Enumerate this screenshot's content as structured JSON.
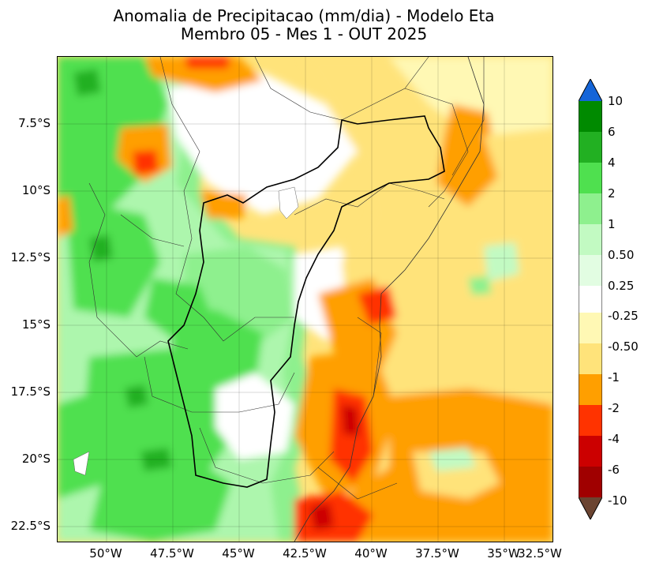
{
  "title_line1": "Anomalia de Precipitacao (mm/dia) - Modelo Eta",
  "title_line2": "Membro 05 - Mes 1 - OUT 2025",
  "y_axis": [
    "7.5°S",
    "10°S",
    "12.5°S",
    "15°S",
    "17.5°S",
    "20°S",
    "22.5°S"
  ],
  "x_axis": [
    "50°W",
    "47.5°W",
    "45°W",
    "42.5°W",
    "40°W",
    "37.5°W",
    "35°W",
    "32.5°W"
  ],
  "colorbar": {
    "labels": [
      "10",
      "6",
      "4",
      "2",
      "1",
      "0.50",
      "0.25",
      "-0.25",
      "-0.50",
      "-1",
      "-2",
      "-4",
      "-6",
      "-10"
    ],
    "colors": {
      "extend_max": "#1565d8",
      "gt6": "#008a00",
      "4_6": "#22b022",
      "2_4": "#4fe04f",
      "1_2": "#8ef08e",
      "0.5_1": "#c2fac2",
      "0.25_0.5": "#e2fde2",
      "neutral": "#ffffff",
      "m0.5_m0.25": "#fff8b4",
      "m1_m0.5": "#ffe37a",
      "m2_m1": "#ff9f00",
      "m4_m2": "#ff3300",
      "m6_m4": "#cc0000",
      "m10_m6": "#a00000",
      "extend_min": "#6b4431"
    }
  }
}
